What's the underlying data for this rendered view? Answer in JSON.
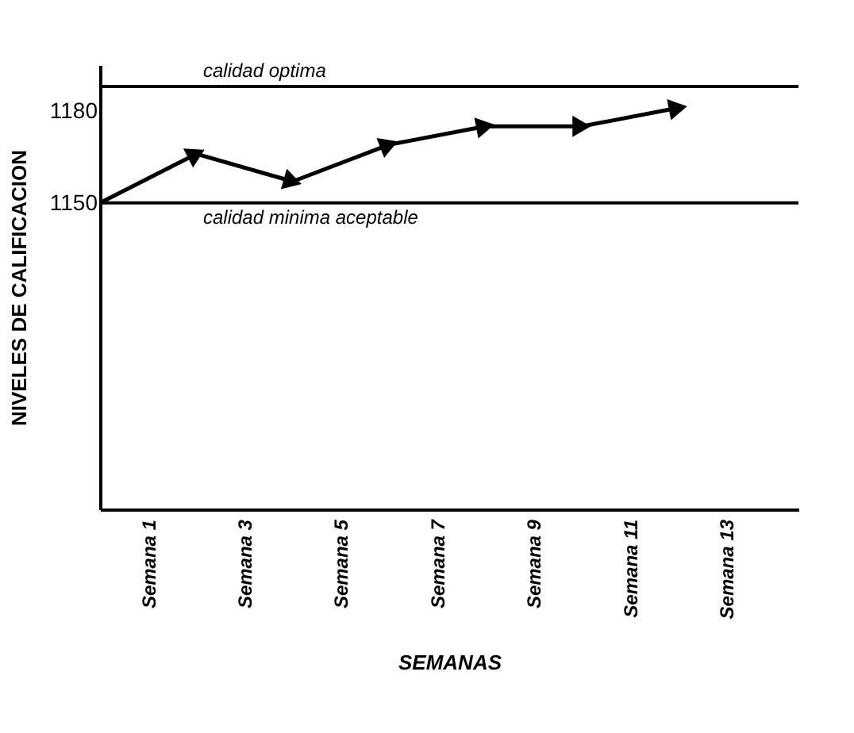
{
  "chart_data": {
    "type": "line",
    "xlabel": "SEMANAS",
    "ylabel": "NIVELES DE CALIFICACION",
    "categories": [
      null,
      "Semana 1",
      null,
      "Semana 3",
      null,
      "Semana 5",
      null,
      "Semana 7",
      null,
      "Semana 9",
      null,
      "Semana 11",
      null,
      "Semana 13",
      null
    ],
    "series": [
      {
        "color": "#000000",
        "values": [
          1150,
          null,
          1166,
          null,
          1157,
          null,
          1169,
          null,
          1175,
          null,
          1175,
          null,
          1181,
          null,
          null
        ]
      }
    ],
    "ylim": [
      1050,
      1195
    ],
    "yticks": [
      1150,
      1180
    ],
    "ref_lines": [
      {
        "axis": "y",
        "value": 1188,
        "label": "calidad optima",
        "color": "#000000"
      },
      {
        "axis": "y",
        "value": 1150,
        "label": "calidad minima aceptable",
        "color": "#000000"
      }
    ],
    "marker": "triangle",
    "grid": false
  }
}
